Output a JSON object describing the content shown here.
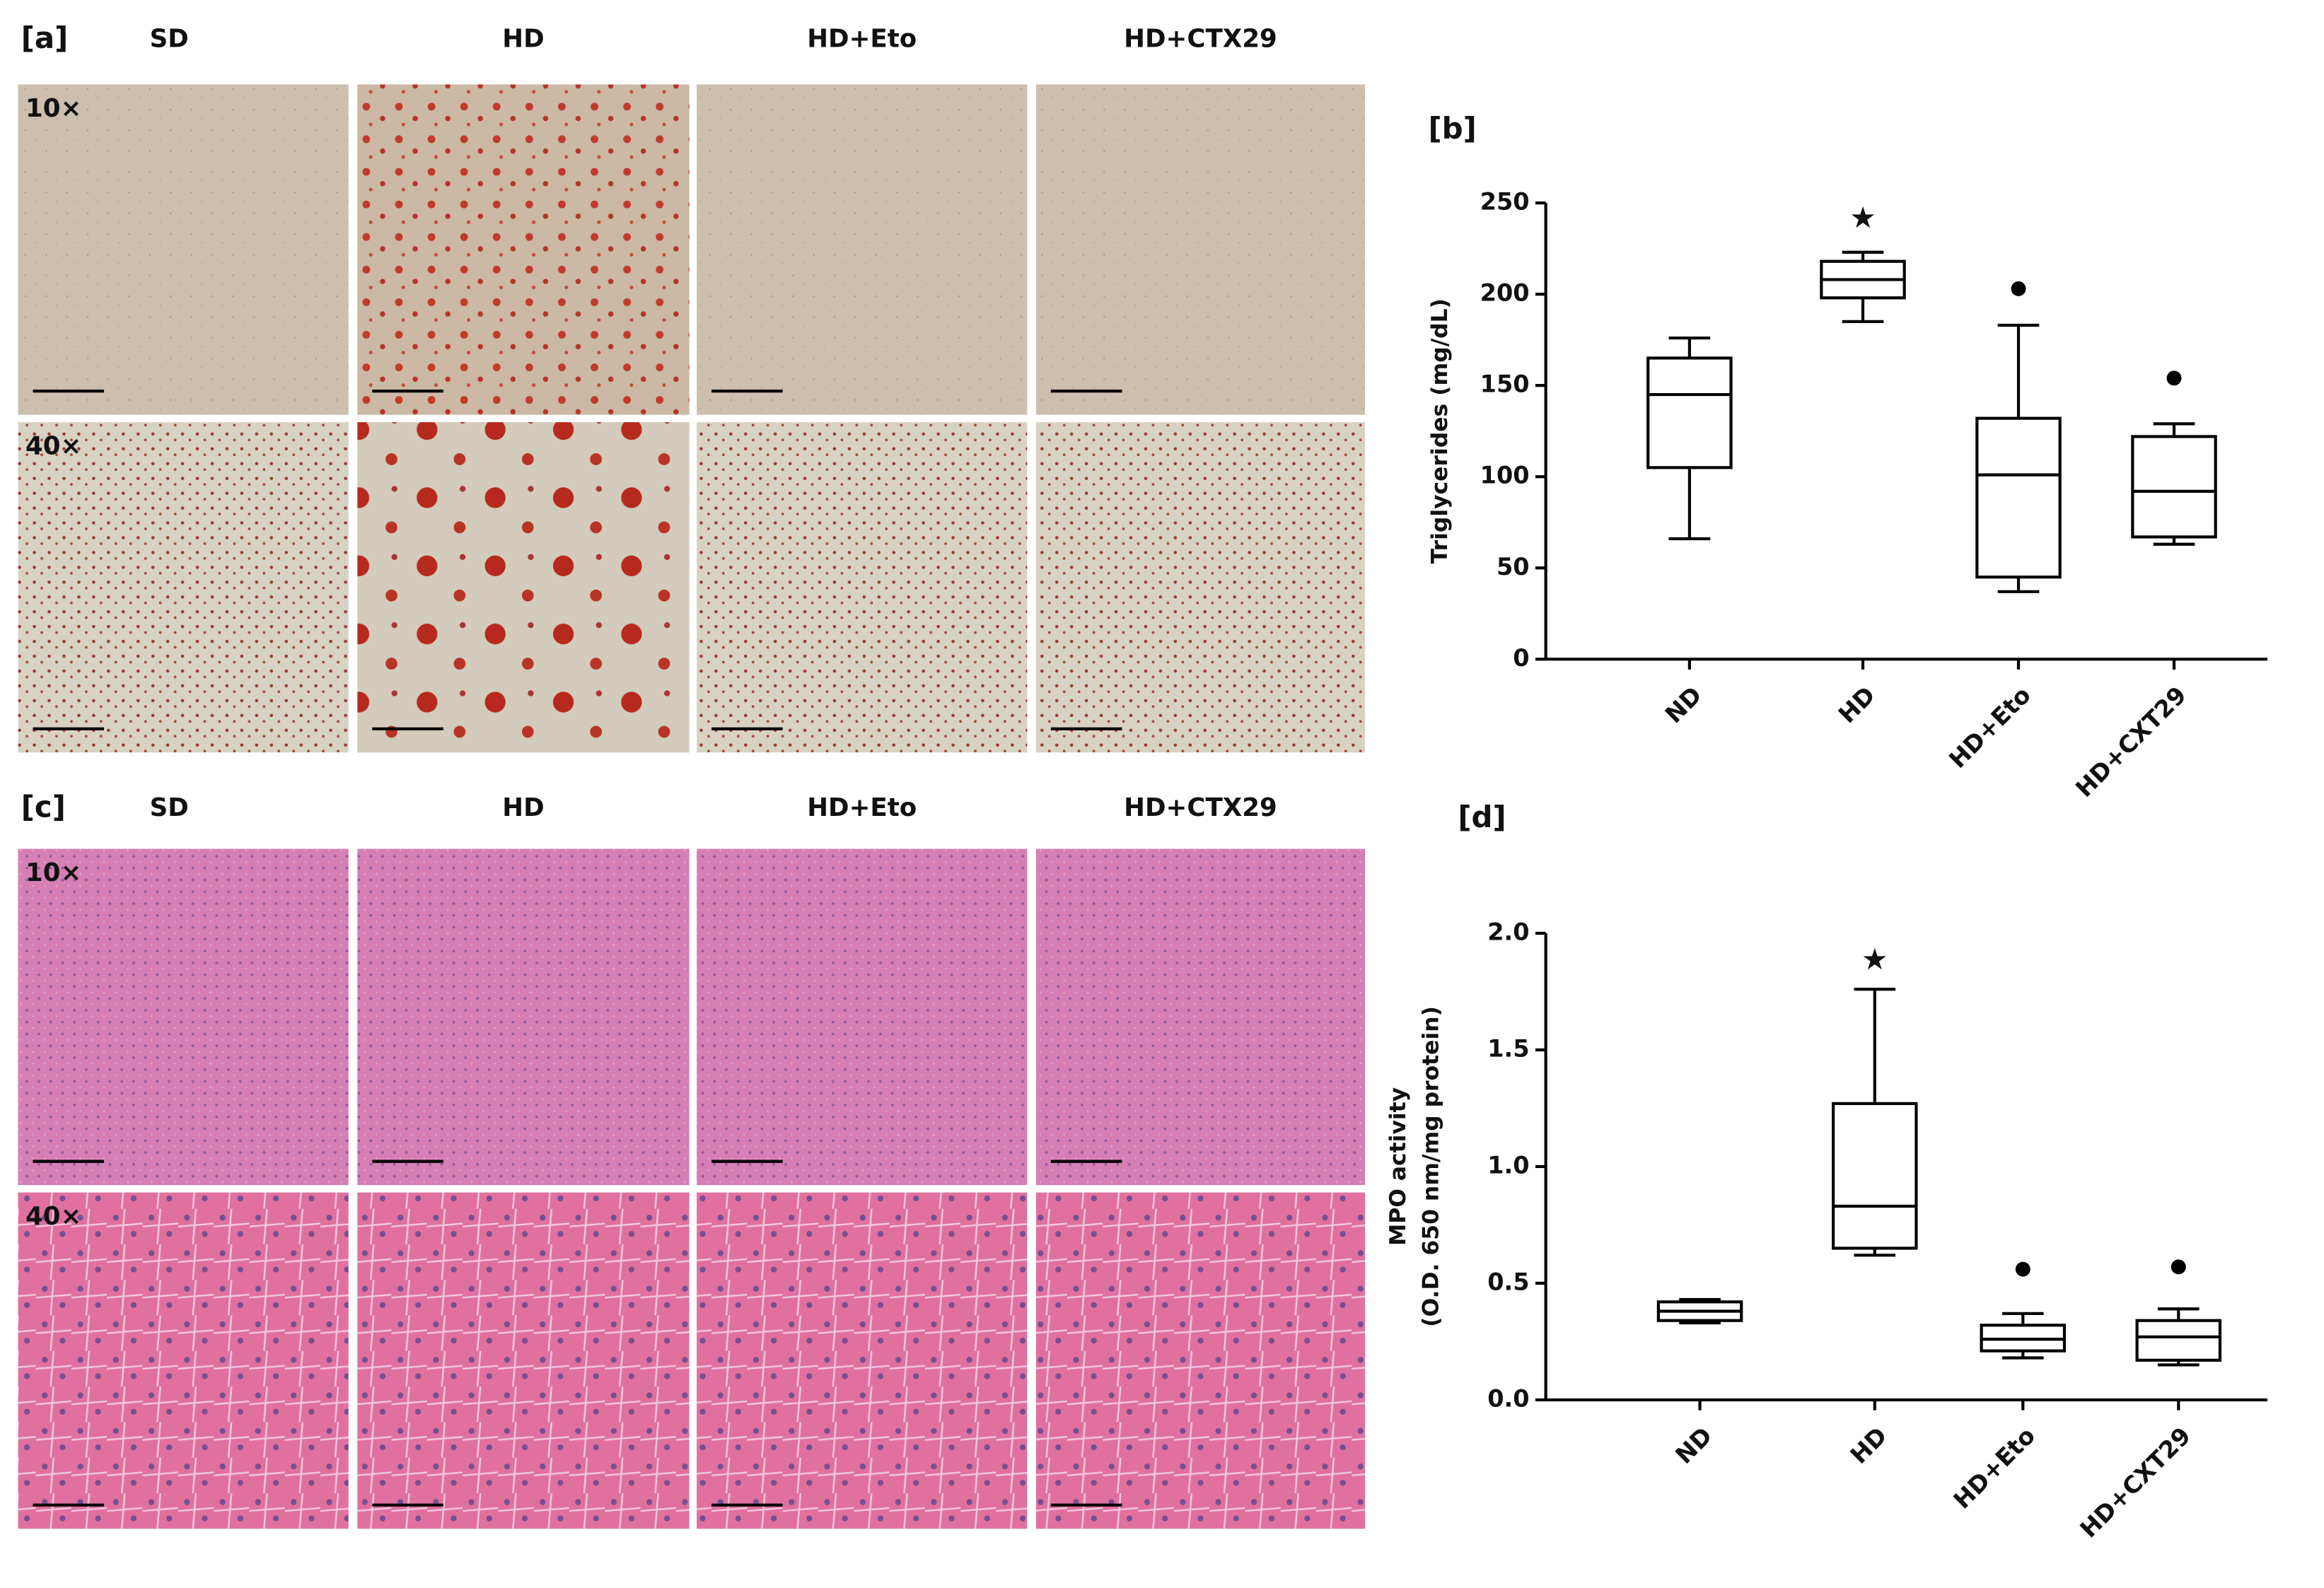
{
  "micrographs": [
    {
      "label": "[a]",
      "columns": [
        "SD",
        "HD",
        "HD+Eto",
        "HD+CTX29"
      ],
      "magnifications": [
        "10×",
        "40×"
      ]
    },
    {
      "label": "[c]",
      "columns": [
        "SD",
        "HD",
        "HD+Eto",
        "HD+CTX29"
      ],
      "magnifications": [
        "10×",
        "40×"
      ]
    }
  ],
  "chart_data": [
    {
      "type": "box",
      "title": "[b]",
      "y_label": [
        "Triglycerides (mg/dL)"
      ],
      "categories": [
        "ND",
        "HD",
        "HD+Eto",
        "HD+CXT29"
      ],
      "min": [
        66,
        185,
        37,
        63
      ],
      "q1": [
        105,
        198,
        45,
        67
      ],
      "median": [
        145,
        208,
        101,
        92
      ],
      "q3": [
        165,
        218,
        132,
        122
      ],
      "max": [
        176,
        223,
        183,
        129
      ],
      "outliers": [
        [],
        [],
        [
          203
        ],
        [
          154
        ]
      ],
      "annotations": [
        {
          "x": "HD",
          "y": 241,
          "text": "★"
        }
      ],
      "ylim": [
        0,
        250
      ],
      "yticks": [
        0,
        50,
        100,
        150,
        200,
        250
      ],
      "color": "#000000"
    },
    {
      "type": "box",
      "title": "[d]",
      "y_label": [
        "MPO activity",
        "(O.D. 650 nm/mg protein)"
      ],
      "categories": [
        "ND",
        "HD",
        "HD+Eto",
        "HD+CXT29"
      ],
      "min": [
        0.33,
        0.62,
        0.18,
        0.15
      ],
      "q1": [
        0.34,
        0.65,
        0.21,
        0.17
      ],
      "median": [
        0.38,
        0.83,
        0.26,
        0.27
      ],
      "q3": [
        0.42,
        1.27,
        0.32,
        0.34
      ],
      "max": [
        0.43,
        1.76,
        0.37,
        0.39
      ],
      "outliers": [
        [],
        [],
        [
          0.56
        ],
        [
          0.57
        ]
      ],
      "annotations": [
        {
          "x": "HD",
          "y": 1.88,
          "text": "★"
        }
      ],
      "ylim": [
        0,
        2
      ],
      "yticks": [
        {
          "value": 0,
          "label": "0.0"
        },
        0.5,
        {
          "value": 1,
          "label": "1.0"
        },
        1.5,
        {
          "value": 2,
          "label": "2.0"
        }
      ],
      "color": "#000000"
    }
  ]
}
